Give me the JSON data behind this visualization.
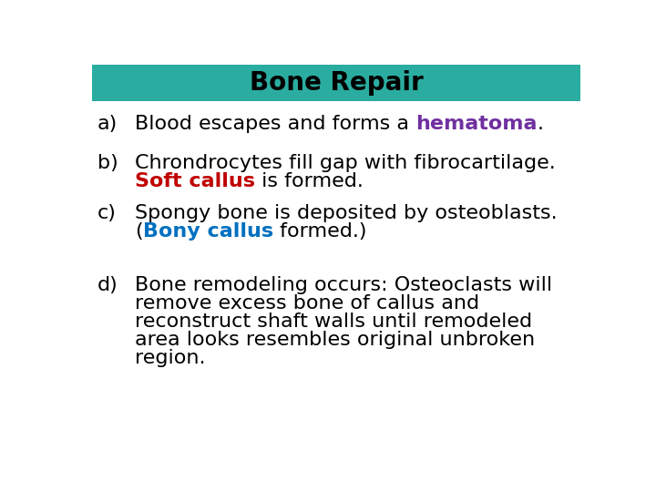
{
  "title": "Bone Repair",
  "title_bg_color": "#2aada0",
  "title_text_color": "#000000",
  "bg_color": "#ffffff",
  "title_fontsize": 20,
  "body_fontsize": 16,
  "items": [
    {
      "label": "a)",
      "lines": [
        [
          {
            "text": "Blood escapes and forms a ",
            "color": "#000000",
            "bold": false
          },
          {
            "text": "hematoma",
            "color": "#7030a0",
            "bold": true
          },
          {
            "text": ".",
            "color": "#000000",
            "bold": false
          }
        ]
      ]
    },
    {
      "label": "b)",
      "lines": [
        [
          {
            "text": "Chrondrocytes fill gap with fibrocartilage.",
            "color": "#000000",
            "bold": false
          }
        ],
        [
          {
            "text": "Soft callus",
            "color": "#c00000",
            "bold": true
          },
          {
            "text": " is formed.",
            "color": "#000000",
            "bold": false
          }
        ]
      ]
    },
    {
      "label": "c)",
      "lines": [
        [
          {
            "text": "Spongy bone is deposited by osteoblasts.",
            "color": "#000000",
            "bold": false
          }
        ],
        [
          {
            "text": "(",
            "color": "#000000",
            "bold": false
          },
          {
            "text": "Bony callus",
            "color": "#0070c0",
            "bold": true
          },
          {
            "text": " formed.)",
            "color": "#000000",
            "bold": false
          }
        ]
      ]
    },
    {
      "label": "d)",
      "lines": [
        [
          {
            "text": "Bone remodeling occurs: Osteoclasts will",
            "color": "#000000",
            "bold": false
          }
        ],
        [
          {
            "text": "remove excess bone of callus and",
            "color": "#000000",
            "bold": false
          }
        ],
        [
          {
            "text": "reconstruct shaft walls until remodeled",
            "color": "#000000",
            "bold": false
          }
        ],
        [
          {
            "text": "area looks resembles original unbroken",
            "color": "#000000",
            "bold": false
          }
        ],
        [
          {
            "text": "region.",
            "color": "#000000",
            "bold": false
          }
        ]
      ]
    }
  ]
}
